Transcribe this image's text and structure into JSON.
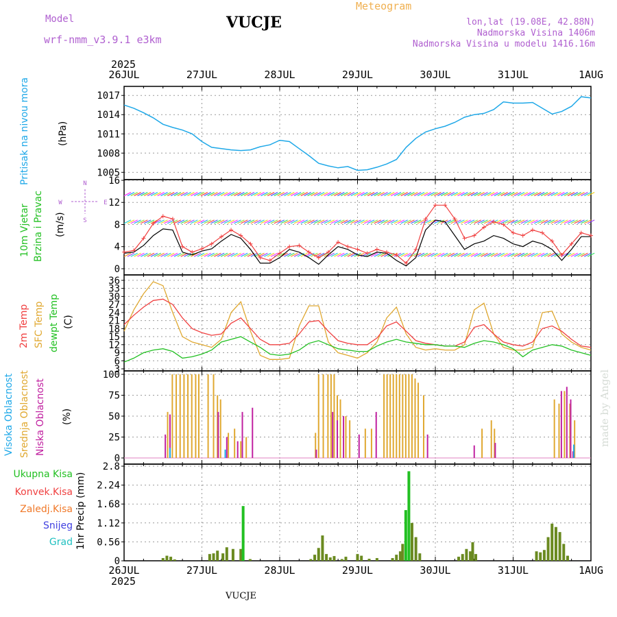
{
  "header": {
    "model_label": "Model",
    "model_name": "wrf-nmm_v3.9.1 e3km",
    "station": "VUCJE",
    "title": "Meteogram",
    "coords": "lon,lat (19.08E, 42.88N)",
    "elevation": "Nadmorska Visina 1406m",
    "model_elevation": "Nadmorska Visina u modelu 1416.16m"
  },
  "footer": {
    "station": "VUCJE"
  },
  "watermark": "made by Angel",
  "colors": {
    "pressure": "#1ea8e8",
    "temp2m": "#f04040",
    "sfc": "#e0a830",
    "dewpt": "#22c022",
    "high": "#1ea8e8",
    "mid": "#e0a830",
    "low": "#c020a0",
    "total": "#22c022",
    "conv": "#f04040",
    "strat": "#f07828",
    "snow": "#4040e0",
    "hail": "#20c0c0",
    "violet": "#b060d0"
  },
  "chart_data": [
    {
      "type": "line",
      "panel": "pressure",
      "title": "Pritisak na nivou mora",
      "ylabel": "(hPa)",
      "x_start_label": "26JUL",
      "year": "2025",
      "x_ticks": [
        "26JUL",
        "27JUL",
        "28JUL",
        "29JUL",
        "30JUL",
        "31JUL",
        "1AUG"
      ],
      "ylim": [
        1004.5,
        1018.2
      ],
      "y_ticks": [
        "1005",
        "1008",
        "1011",
        "1014",
        "1017"
      ],
      "x": [
        0,
        0.125,
        0.25,
        0.375,
        0.5,
        0.625,
        0.75,
        0.875,
        1,
        1.125,
        1.25,
        1.375,
        1.5,
        1.625,
        1.75,
        1.875,
        2,
        2.125,
        2.25,
        2.375,
        2.5,
        2.625,
        2.75,
        2.875,
        3,
        3.125,
        3.25,
        3.375,
        3.5,
        3.625,
        3.75,
        3.875,
        4,
        4.125,
        4.25,
        4.375,
        4.5,
        4.625,
        4.75,
        4.875,
        5,
        5.125,
        5.25,
        5.375,
        5.5,
        5.625,
        5.75,
        5.875,
        6
      ],
      "values": [
        1015.5,
        1015.0,
        1014.3,
        1013.5,
        1012.5,
        1012.0,
        1011.6,
        1011.0,
        1009.8,
        1008.9,
        1008.7,
        1008.5,
        1008.4,
        1008.5,
        1009.0,
        1009.3,
        1010.0,
        1009.8,
        1008.7,
        1007.6,
        1006.4,
        1006.0,
        1005.7,
        1005.9,
        1005.3,
        1005.4,
        1005.8,
        1006.3,
        1007.0,
        1008.9,
        1010.3,
        1011.3,
        1011.8,
        1012.2,
        1012.8,
        1013.6,
        1014.0,
        1014.2,
        1014.8,
        1016.0,
        1015.8,
        1015.8,
        1015.9,
        1015.0,
        1014.1,
        1014.5,
        1015.3,
        1016.8,
        1016.6
      ]
    },
    {
      "type": "line",
      "panel": "wind",
      "title1": "10m Vjetar",
      "title2": "Brzina i Pravac",
      "ylabel": "(m/s)",
      "compass": [
        "N",
        "S",
        "W",
        "E"
      ],
      "ylim": [
        -0.5,
        16
      ],
      "y_ticks": [
        "0",
        "4",
        "8",
        "12",
        "16"
      ],
      "x": [
        0,
        0.125,
        0.25,
        0.375,
        0.5,
        0.625,
        0.75,
        0.875,
        1,
        1.125,
        1.25,
        1.375,
        1.5,
        1.625,
        1.75,
        1.875,
        2,
        2.125,
        2.25,
        2.375,
        2.5,
        2.625,
        2.75,
        2.875,
        3,
        3.125,
        3.25,
        3.375,
        3.5,
        3.625,
        3.75,
        3.875,
        4,
        4.125,
        4.25,
        4.375,
        4.5,
        4.625,
        4.75,
        4.875,
        5,
        5.125,
        5.25,
        5.375,
        5.5,
        5.625,
        5.75,
        5.875,
        6
      ],
      "series": [
        {
          "name": "speed",
          "values": [
            2.8,
            3.0,
            4.2,
            6.0,
            7.2,
            7.0,
            3.0,
            2.5,
            3.2,
            3.6,
            5.0,
            6.2,
            5.5,
            3.5,
            1.0,
            1.0,
            2.0,
            3.5,
            3.0,
            2.0,
            0.8,
            2.5,
            4.0,
            3.5,
            2.5,
            2.2,
            3.0,
            2.8,
            1.5,
            0.5,
            2.0,
            7.0,
            8.8,
            8.5,
            6.0,
            3.5,
            4.5,
            5.0,
            6.0,
            5.5,
            4.5,
            4.0,
            5.0,
            4.5,
            3.5,
            1.5,
            3.5,
            5.8,
            5.8
          ]
        },
        {
          "name": "gust",
          "values": [
            3.0,
            3.3,
            5.5,
            8.2,
            9.5,
            9.0,
            4.0,
            3.0,
            3.6,
            4.5,
            5.8,
            7.0,
            6.0,
            4.5,
            2.0,
            1.5,
            2.8,
            4.0,
            4.2,
            3.0,
            2.0,
            3.0,
            4.8,
            4.0,
            3.5,
            2.8,
            3.5,
            3.0,
            2.5,
            1.0,
            3.5,
            9.0,
            11.5,
            11.5,
            9.0,
            5.5,
            6.0,
            7.5,
            8.5,
            8.0,
            6.5,
            6.0,
            7.0,
            6.5,
            5.0,
            2.5,
            4.5,
            6.5,
            6.0
          ]
        }
      ]
    },
    {
      "type": "line",
      "panel": "temperature",
      "labels": [
        "2m Temp",
        "SFC Temp",
        "dewpt Temp"
      ],
      "ylabel": "(C)",
      "ylim": [
        3,
        37
      ],
      "y_ticks": [
        "3",
        "6",
        "9",
        "12",
        "15",
        "18",
        "21",
        "24",
        "27",
        "30",
        "33",
        "36"
      ],
      "x": [
        0,
        0.125,
        0.25,
        0.375,
        0.5,
        0.625,
        0.75,
        0.875,
        1,
        1.125,
        1.25,
        1.375,
        1.5,
        1.625,
        1.75,
        1.875,
        2,
        2.125,
        2.25,
        2.375,
        2.5,
        2.625,
        2.75,
        2.875,
        3,
        3.125,
        3.25,
        3.375,
        3.5,
        3.625,
        3.75,
        3.875,
        4,
        4.125,
        4.25,
        4.375,
        4.5,
        4.625,
        4.75,
        4.875,
        5,
        5.125,
        5.25,
        5.375,
        5.5,
        5.625,
        5.75,
        5.875,
        6
      ],
      "series": [
        {
          "name": "2m Temp",
          "values": [
            19.5,
            23.0,
            26.0,
            28.5,
            29.0,
            27.0,
            22.0,
            18.0,
            16.5,
            15.5,
            16.0,
            20.0,
            22.0,
            18.0,
            14.0,
            12.0,
            12.0,
            12.5,
            16.0,
            20.5,
            21.0,
            17.0,
            13.5,
            12.5,
            12.0,
            12.0,
            14.5,
            19.0,
            20.5,
            17.0,
            13.5,
            12.5,
            12.0,
            11.5,
            11.5,
            13.0,
            18.5,
            19.5,
            16.0,
            13.0,
            12.0,
            11.5,
            13.0,
            18.0,
            19.0,
            17.0,
            14.0,
            11.5,
            11.0
          ]
        },
        {
          "name": "SFC Temp",
          "values": [
            17.0,
            25.0,
            31.0,
            35.5,
            34.0,
            24.0,
            15.0,
            13.0,
            12.0,
            11.0,
            14.0,
            24.0,
            28.0,
            17.0,
            8.0,
            6.5,
            6.5,
            7.0,
            19.0,
            26.5,
            26.5,
            13.0,
            9.0,
            8.0,
            7.0,
            9.0,
            13.0,
            22.0,
            26.0,
            16.0,
            11.0,
            10.0,
            10.5,
            10.0,
            10.0,
            12.0,
            25.0,
            27.5,
            16.0,
            11.0,
            10.0,
            10.0,
            11.0,
            24.0,
            24.5,
            16.0,
            13.0,
            11.0,
            10.0
          ]
        },
        {
          "name": "dewpt Temp",
          "values": [
            5.5,
            7.0,
            9.0,
            10.0,
            10.5,
            9.5,
            7.0,
            7.5,
            8.5,
            10.0,
            13.0,
            14.0,
            15.0,
            13.0,
            11.0,
            8.5,
            8.0,
            8.5,
            10.0,
            12.5,
            13.5,
            12.0,
            10.5,
            10.0,
            9.5,
            9.5,
            11.5,
            13.0,
            14.0,
            13.0,
            12.5,
            12.0,
            12.0,
            11.5,
            11.5,
            11.0,
            12.5,
            13.5,
            13.0,
            12.0,
            10.5,
            7.5,
            10.0,
            11.0,
            12.0,
            11.5,
            10.0,
            9.0,
            8.0
          ]
        }
      ]
    },
    {
      "type": "bar",
      "panel": "cloud",
      "labels": [
        "Visoka Oblacnost",
        "Srednja Oblacnost",
        "Niska Oblacnost"
      ],
      "ylabel": "(%)",
      "ylim": [
        0,
        100
      ],
      "y_ticks": [
        "0",
        "25",
        "50",
        "75",
        "100"
      ],
      "series": [
        {
          "name": "Srednja Oblacnost",
          "x": [
            0.56,
            0.62,
            0.67,
            0.72,
            0.77,
            0.82,
            0.87,
            0.92,
            0.96,
            1.08,
            1.15,
            1.2,
            1.24,
            1.34,
            1.42,
            1.5,
            1.57,
            2.46,
            2.5,
            2.56,
            2.62,
            2.66,
            2.7,
            2.74,
            2.78,
            2.85,
            2.9,
            3.1,
            3.18,
            3.34,
            3.38,
            3.42,
            3.46,
            3.5,
            3.54,
            3.58,
            3.62,
            3.66,
            3.7,
            3.74,
            3.78,
            3.85,
            4.6,
            4.72,
            4.76,
            5.53,
            5.59,
            5.66,
            5.73,
            5.79
          ],
          "values": [
            55,
            100,
            100,
            100,
            100,
            100,
            100,
            100,
            100,
            100,
            100,
            75,
            70,
            30,
            35,
            20,
            25,
            30,
            100,
            100,
            100,
            100,
            100,
            75,
            70,
            50,
            45,
            35,
            35,
            100,
            100,
            100,
            100,
            100,
            100,
            100,
            100,
            100,
            100,
            95,
            90,
            75,
            35,
            45,
            35,
            70,
            65,
            80,
            65,
            45
          ]
        },
        {
          "name": "Niska Oblacnost",
          "x": [
            0.53,
            0.59,
            1.21,
            1.32,
            1.46,
            1.52,
            1.65,
            2.47,
            2.68,
            2.74,
            2.82,
            3.02,
            3.24,
            3.9,
            4.5,
            4.77,
            5.62,
            5.69,
            5.74,
            5.77
          ],
          "values": [
            28,
            52,
            55,
            25,
            20,
            55,
            60,
            10,
            55,
            45,
            50,
            28,
            55,
            28,
            15,
            18,
            80,
            85,
            70,
            8
          ]
        },
        {
          "name": "Visoka Oblacnost",
          "x": [
            0.59,
            1.3,
            5.78
          ],
          "values": [
            12,
            10,
            16
          ]
        }
      ]
    },
    {
      "type": "bar",
      "panel": "precip",
      "labels": [
        "Ukupna Kisa",
        "Konvek.Kisa",
        "Zaledj.Kisa",
        "Snijeg",
        "Grad"
      ],
      "ylabel": "1hr Precip (mm)",
      "ylim": [
        0,
        2.8
      ],
      "y_ticks": [
        "0",
        "0.56",
        "1.12",
        "1.68",
        "2.24",
        "2.8"
      ],
      "x": [
        0.5,
        0.55,
        0.6,
        0.65,
        1.1,
        1.15,
        1.2,
        1.27,
        1.32,
        1.4,
        1.5,
        1.53,
        1.62,
        2.4,
        2.45,
        2.5,
        2.55,
        2.6,
        2.65,
        2.7,
        2.8,
        2.85,
        3.0,
        3.05,
        3.15,
        3.25,
        3.45,
        3.5,
        3.55,
        3.58,
        3.62,
        3.66,
        3.7,
        3.75,
        3.8,
        4.3,
        4.35,
        4.4,
        4.45,
        4.48,
        4.52,
        5.3,
        5.35,
        5.4,
        5.45,
        5.5,
        5.55,
        5.6,
        5.65,
        5.7
      ],
      "values": [
        0.08,
        0.15,
        0.12,
        0.04,
        0.2,
        0.22,
        0.3,
        0.22,
        0.4,
        0.35,
        0.35,
        1.62,
        0.05,
        0.05,
        0.18,
        0.38,
        0.75,
        0.2,
        0.1,
        0.14,
        0.05,
        0.12,
        0.2,
        0.15,
        0.06,
        0.08,
        0.08,
        0.18,
        0.28,
        0.5,
        1.5,
        2.65,
        1.12,
        0.7,
        0.22,
        0.12,
        0.2,
        0.35,
        0.28,
        0.55,
        0.2,
        0.28,
        0.25,
        0.32,
        0.7,
        1.1,
        1.0,
        0.85,
        0.5,
        0.15
      ]
    }
  ]
}
